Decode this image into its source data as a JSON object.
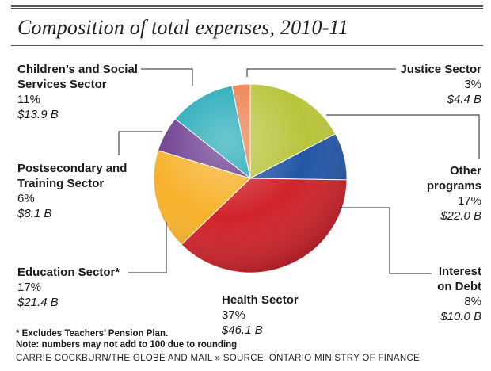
{
  "title": "Composition of total expenses, 2010-11",
  "chart_data": {
    "type": "pie",
    "slices": [
      {
        "label": "Other programs",
        "name_lines": [
          "Other",
          "programs"
        ],
        "pct": 17,
        "pct_text": "17%",
        "amount": 22.0,
        "amount_text": "$22.0 B",
        "color": "#b9c43c"
      },
      {
        "label": "Interest on Debt",
        "name_lines": [
          "Interest",
          "on Debt"
        ],
        "pct": 8,
        "pct_text": "8%",
        "amount": 10.0,
        "amount_text": "$10.0 B",
        "color": "#2456a6"
      },
      {
        "label": "Health Sector",
        "name_lines": [
          "Health Sector"
        ],
        "pct": 37,
        "pct_text": "37%",
        "amount": 46.1,
        "amount_text": "$46.1 B",
        "color": "#d0232a"
      },
      {
        "label": "Education Sector*",
        "name_lines": [
          "Education Sector*"
        ],
        "pct": 17,
        "pct_text": "17%",
        "amount": 21.4,
        "amount_text": "$21.4 B",
        "color": "#f7b22c"
      },
      {
        "label": "Postsecondary and Training Sector",
        "name_lines": [
          "Postsecondary and",
          "Training Sector"
        ],
        "pct": 6,
        "pct_text": "6%",
        "amount": 8.1,
        "amount_text": "$8.1 B",
        "color": "#6a3a8e"
      },
      {
        "label": "Children's and Social Services Sector",
        "name_lines": [
          "Children’s and Social",
          "Services Sector"
        ],
        "pct": 11,
        "pct_text": "11%",
        "amount": 13.9,
        "amount_text": "$13.9 B",
        "color": "#1fa9b6"
      },
      {
        "label": "Justice Sector",
        "name_lines": [
          "Justice Sector"
        ],
        "pct": 3,
        "pct_text": "3%",
        "amount": 4.4,
        "amount_text": "$4.4 B",
        "color": "#ec7f4c"
      }
    ]
  },
  "notes": {
    "footnote": "* Excludes Teachers’ Pension Plan.",
    "rounding": "Note: numbers may not add to 100 due to rounding"
  },
  "credit": {
    "author": "CARRIE COCKBURN/THE GLOBE AND MAIL",
    "separator": "»",
    "source": "SOURCE: ONTARIO MINISTRY OF FINANCE"
  }
}
